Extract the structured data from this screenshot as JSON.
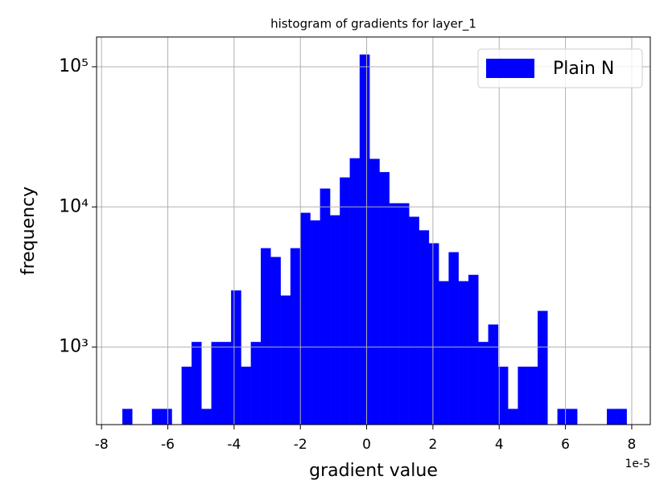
{
  "chart_data": {
    "type": "histogram",
    "title": "histogram of gradients for layer_1",
    "x_label": "gradient value",
    "y_label": "frequency",
    "x_offset_label": "1e-5",
    "bins": [
      -7.37,
      -7.0716,
      -6.7732,
      -6.4748,
      -6.1764,
      -5.878,
      -5.5796,
      -5.2812,
      -4.9828,
      -4.6844,
      -4.386,
      -4.0876,
      -3.7892,
      -3.4908,
      -3.1924,
      -2.894,
      -2.5956,
      -2.2972,
      -1.9988,
      -1.7004,
      -1.402,
      -1.1036,
      -0.8052,
      -0.5068,
      -0.2084,
      0.09,
      0.3884,
      0.6868,
      0.9852,
      1.2836,
      1.582,
      1.8804,
      2.1788,
      2.4772,
      2.7756,
      3.074,
      3.3724,
      3.6708,
      3.9692,
      4.2676,
      4.566,
      4.8644,
      5.1628,
      5.4612,
      5.7596,
      6.058,
      6.3564,
      6.6548,
      6.9532,
      7.2516,
      7.55,
      7.8484
    ],
    "series": [
      {
        "name": "Plain N",
        "color": "#0000ff",
        "values": [
          362,
          0,
          0,
          362,
          362,
          0,
          724,
          1086,
          362,
          1086,
          1086,
          2530,
          724,
          1086,
          5070,
          4390,
          2330,
          5070,
          9070,
          8000,
          13500,
          8700,
          16200,
          22200,
          122000,
          22000,
          17700,
          10600,
          10600,
          8500,
          6800,
          5500,
          2950,
          4750,
          2950,
          3270,
          1086,
          1448,
          724,
          362,
          724,
          724,
          1810,
          0,
          362,
          362,
          0,
          0,
          0,
          362,
          362
        ]
      }
    ],
    "xlim": [
      -8.15,
      8.56
    ],
    "xticks": [
      -8,
      -6,
      -4,
      -2,
      0,
      2,
      4,
      6,
      8
    ],
    "ylim": [
      280,
      163000
    ],
    "y_scale": "log",
    "yticks": [
      {
        "value": 1000,
        "label": "10³"
      },
      {
        "value": 10000,
        "label": "10⁴"
      },
      {
        "value": 100000,
        "label": "10⁵"
      }
    ],
    "grid": true,
    "legend_position": "upper right"
  }
}
